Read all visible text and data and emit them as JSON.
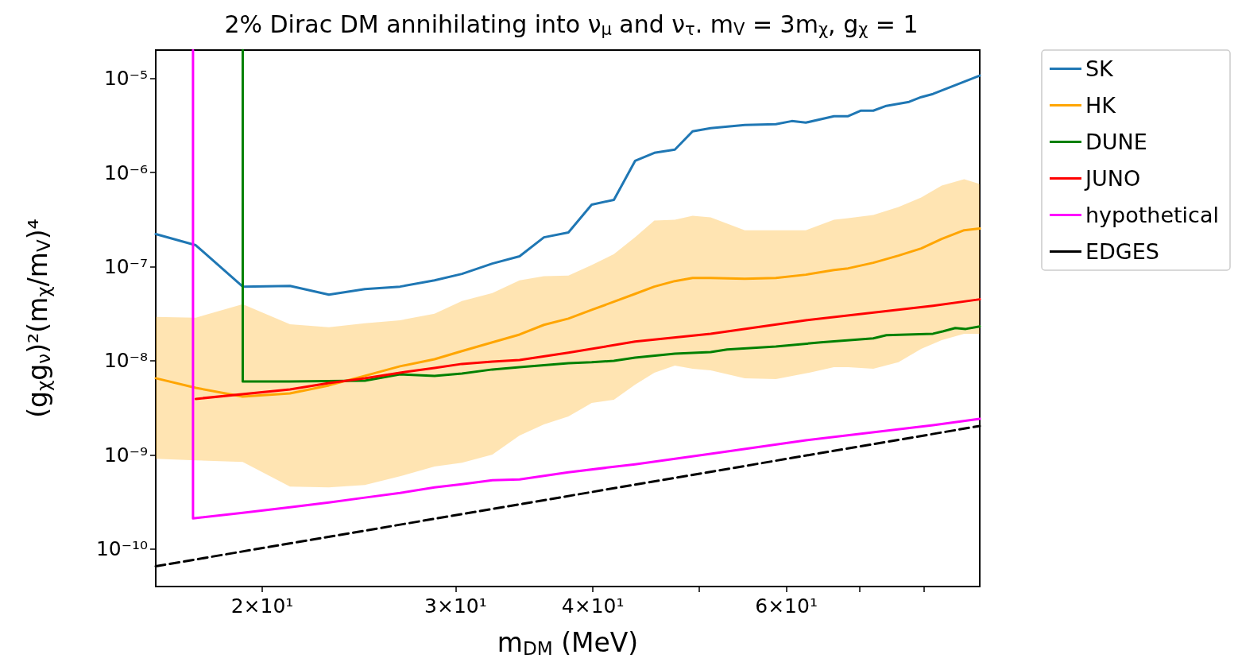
{
  "chart_data": {
    "type": "line",
    "title": "2% Dirac DM annihilating into ν$_{μ}$ and ν$_{τ}$. m$_{V}$ = 3m$_{χ}$, g$_{χ}$ = 1",
    "xlabel": "m$_{DM}$ (MeV)",
    "ylabel": "(g$_{χ}$g$_{ν}$)²(m$_{χ}$/m$_{V}$)⁴",
    "log": "xy",
    "grid": false,
    "legend": "top right",
    "marker": "none",
    "xlim": [
      16,
      90
    ],
    "xticks": [
      {
        "value": 20,
        "label": "2×10¹"
      },
      {
        "value": 30,
        "label": "3×10¹"
      },
      {
        "value": 40,
        "label": "4×10¹"
      },
      {
        "value": 50,
        "label": null
      },
      {
        "value": 60,
        "label": "6×10¹"
      },
      {
        "value": 70,
        "label": null
      },
      {
        "value": 80,
        "label": null
      }
    ],
    "ylim": [
      4e-11,
      2e-05
    ],
    "yticks": [
      {
        "value": 1e-10,
        "label": "10⁻¹⁰"
      },
      {
        "value": 1e-09,
        "label": "10⁻⁹"
      },
      {
        "value": 1e-08,
        "label": "10⁻⁸"
      },
      {
        "value": 1e-07,
        "label": "10⁻⁷"
      },
      {
        "value": 1e-06,
        "label": "10⁻⁶"
      },
      {
        "value": 1e-05,
        "label": "10⁻⁵"
      }
    ],
    "series": [
      {
        "name": "SK",
        "color": "#1f77b4",
        "x": [
          16,
          17.4,
          19.2,
          21.2,
          23,
          24.8,
          26.7,
          28.7,
          30.4,
          32.4,
          34.3,
          36.1,
          38,
          39.9,
          41.8,
          43.7,
          45.5,
          47.5,
          49.3,
          51.2,
          55,
          58.7,
          60.7,
          62.5,
          66.3,
          68.3,
          70.1,
          72,
          74,
          77.6,
          79.6,
          81.6,
          90
        ],
        "values": [
          2.22e-07,
          1.69e-07,
          6.14e-08,
          6.25e-08,
          5.05e-08,
          5.78e-08,
          6.14e-08,
          7.16e-08,
          8.38e-08,
          1.08e-07,
          1.29e-07,
          2.05e-07,
          2.31e-07,
          4.56e-07,
          5.13e-07,
          1.33e-06,
          1.62e-06,
          1.75e-06,
          2.74e-06,
          2.96e-06,
          3.2e-06,
          3.27e-06,
          3.52e-06,
          3.39e-06,
          3.97e-06,
          3.97e-06,
          4.54e-06,
          4.54e-06,
          5.11e-06,
          5.63e-06,
          6.33e-06,
          6.84e-06,
          1.07e-05
        ]
      },
      {
        "name": "HK",
        "color": "#ffa500",
        "x": [
          16,
          17.4,
          19.2,
          21.2,
          23,
          24.8,
          26.7,
          28.7,
          30.4,
          32.4,
          34.3,
          36.1,
          38,
          39.9,
          41.8,
          43.7,
          45.5,
          47.5,
          49.3,
          51.2,
          55,
          58.7,
          62.5,
          66.3,
          68.3,
          72,
          75.9,
          79.6,
          83.1,
          87.1,
          90
        ],
        "values": [
          6.53e-09,
          5.16e-09,
          4.17e-09,
          4.51e-09,
          5.48e-09,
          6.92e-09,
          8.75e-09,
          1.04e-08,
          1.27e-08,
          1.57e-08,
          1.9e-08,
          2.41e-08,
          2.81e-08,
          3.48e-08,
          4.24e-08,
          5.14e-08,
          6.14e-08,
          7.03e-08,
          7.6e-08,
          7.6e-08,
          7.45e-08,
          7.6e-08,
          8.22e-08,
          9.23e-08,
          9.6e-08,
          1.1e-07,
          1.31e-07,
          1.56e-07,
          1.97e-07,
          2.44e-07,
          2.54e-07
        ],
        "upper": [
          2.92e-08,
          2.87e-08,
          4e-08,
          2.45e-08,
          2.27e-08,
          2.5e-08,
          2.7e-08,
          3.16e-08,
          4.32e-08,
          5.25e-08,
          7.16e-08,
          7.91e-08,
          8.05e-08,
          1.04e-07,
          1.36e-07,
          2.05e-07,
          3.09e-07,
          3.15e-07,
          3.47e-07,
          3.34e-07,
          2.44e-07,
          2.44e-07,
          2.44e-07,
          3.15e-07,
          3.27e-07,
          3.54e-07,
          4.3e-07,
          5.43e-07,
          7.28e-07,
          8.51e-07,
          7.57e-07
        ],
        "lower": [
          9.12e-10,
          8.77e-10,
          8.43e-10,
          4.61e-10,
          4.53e-10,
          4.8e-10,
          5.94e-10,
          7.52e-10,
          8.28e-10,
          1.01e-09,
          1.61e-09,
          2.11e-09,
          2.56e-09,
          3.56e-09,
          3.85e-09,
          5.58e-09,
          7.48e-09,
          8.91e-09,
          8.24e-09,
          7.93e-09,
          6.53e-09,
          6.4e-09,
          7.35e-09,
          8.57e-09,
          8.57e-09,
          8.24e-09,
          9.64e-09,
          1.34e-08,
          1.66e-08,
          1.94e-08,
          1.94e-08
        ]
      },
      {
        "name": "DUNE",
        "color": "#008000",
        "x": [
          19.2,
          19.2,
          21.2,
          24.8,
          26.7,
          28.7,
          30.4,
          32.4,
          34.3,
          38,
          39.9,
          41.8,
          43.7,
          47.5,
          51.2,
          53,
          58.7,
          64.5,
          72,
          74,
          81.6,
          83.4,
          85.5,
          87.4,
          90
        ],
        "values": [
          2e-05,
          6.04e-09,
          6.04e-09,
          6.15e-09,
          7.19e-09,
          6.92e-09,
          7.33e-09,
          8.09e-09,
          8.57e-09,
          9.44e-09,
          9.64e-09,
          1e-08,
          1.08e-08,
          1.19e-08,
          1.24e-08,
          1.32e-08,
          1.42e-08,
          1.57e-08,
          1.73e-08,
          1.87e-08,
          1.94e-08,
          2.06e-08,
          2.23e-08,
          2.18e-08,
          2.32e-08
        ]
      },
      {
        "name": "JUNO",
        "color": "#ff0000",
        "x": [
          17.4,
          21.2,
          23,
          24.8,
          26.7,
          28.7,
          30.4,
          32.4,
          34.3,
          38,
          43.7,
          51.2,
          62.5,
          81.6,
          90
        ],
        "values": [
          3.94e-09,
          4.97e-09,
          5.81e-09,
          6.53e-09,
          7.48e-09,
          8.41e-09,
          9.27e-09,
          9.82e-09,
          1.02e-08,
          1.22e-08,
          1.6e-08,
          1.94e-08,
          2.7e-08,
          3.85e-08,
          4.5e-08
        ]
      },
      {
        "name": "hypothetical",
        "color": "#ff00ff",
        "x": [
          17.3,
          17.3,
          19.2,
          21.2,
          23,
          24.8,
          26.7,
          28.7,
          30.4,
          32.4,
          34.3,
          38,
          43.7,
          51.2,
          62.5,
          81.6,
          90
        ],
        "values": [
          2e-05,
          2.12e-10,
          2.43e-10,
          2.78e-10,
          3.13e-10,
          3.52e-10,
          3.95e-10,
          4.52e-10,
          4.89e-10,
          5.39e-10,
          5.5e-10,
          6.55e-10,
          7.96e-10,
          1.03e-09,
          1.43e-09,
          2.07e-09,
          2.42e-09
        ]
      },
      {
        "name": "EDGES",
        "color": "#000000",
        "line_style": "dashed",
        "x": [
          16,
          90
        ],
        "values": [
          6.57e-11,
          2.03e-09
        ]
      }
    ]
  }
}
